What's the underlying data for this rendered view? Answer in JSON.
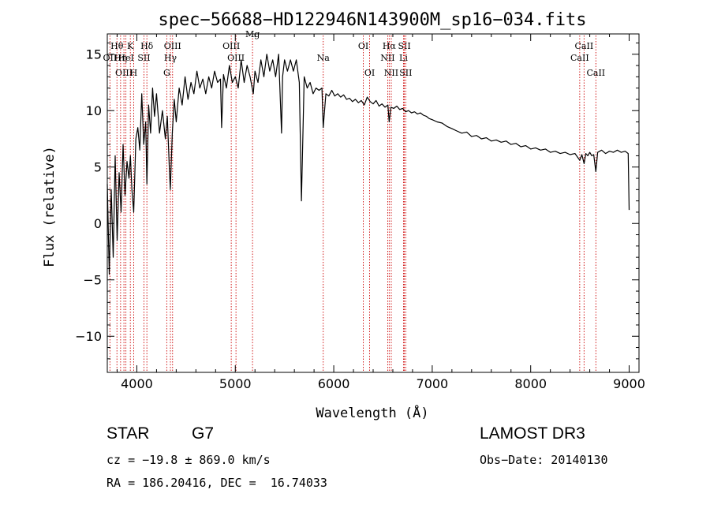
{
  "chart_data": {
    "type": "line",
    "title": "spec−56688−HD122946N143900M_sp16−034.fits",
    "xlabel": "Wavelength (Å)",
    "ylabel": "Flux (relative)",
    "xlim": [
      3700,
      9100
    ],
    "ylim": [
      -13.2,
      16.8
    ],
    "x_ticks": [
      4000,
      5000,
      6000,
      7000,
      8000,
      9000
    ],
    "x_tick_labels": [
      "4000",
      "5000",
      "6000",
      "7000",
      "8000",
      "9000"
    ],
    "y_ticks": [
      -10,
      -5,
      0,
      5,
      10,
      15
    ],
    "y_tick_labels": [
      "−10",
      "−5",
      "0",
      "5",
      "10",
      "15"
    ],
    "grid": false,
    "series": [
      {
        "name": "spectrum",
        "color": "#000000",
        "x": [
          3700,
          3720,
          3740,
          3760,
          3780,
          3800,
          3820,
          3840,
          3860,
          3880,
          3900,
          3920,
          3935,
          3950,
          3968,
          3990,
          4010,
          4030,
          4050,
          4070,
          4090,
          4102,
          4120,
          4140,
          4160,
          4180,
          4200,
          4230,
          4260,
          4290,
          4310,
          4330,
          4340,
          4360,
          4380,
          4400,
          4430,
          4460,
          4490,
          4520,
          4550,
          4580,
          4610,
          4640,
          4670,
          4700,
          4730,
          4760,
          4790,
          4820,
          4850,
          4861,
          4880,
          4910,
          4940,
          4970,
          5000,
          5030,
          5060,
          5090,
          5120,
          5150,
          5172,
          5183,
          5200,
          5230,
          5260,
          5290,
          5320,
          5350,
          5380,
          5410,
          5440,
          5470,
          5480,
          5500,
          5530,
          5560,
          5590,
          5620,
          5650,
          5672,
          5700,
          5730,
          5760,
          5790,
          5820,
          5850,
          5880,
          5893,
          5920,
          5950,
          5980,
          6010,
          6040,
          6070,
          6100,
          6130,
          6160,
          6190,
          6220,
          6250,
          6280,
          6310,
          6340,
          6370,
          6400,
          6430,
          6460,
          6490,
          6520,
          6550,
          6563,
          6580,
          6610,
          6640,
          6670,
          6700,
          6730,
          6760,
          6790,
          6820,
          6850,
          6880,
          6910,
          6940,
          6970,
          7000,
          7050,
          7100,
          7150,
          7200,
          7250,
          7300,
          7350,
          7400,
          7450,
          7500,
          7550,
          7600,
          7650,
          7700,
          7750,
          7800,
          7850,
          7900,
          7950,
          8000,
          8050,
          8100,
          8150,
          8200,
          8250,
          8300,
          8350,
          8400,
          8450,
          8498,
          8520,
          8542,
          8560,
          8580,
          8600,
          8620,
          8640,
          8662,
          8680,
          8720,
          8760,
          8800,
          8840,
          8880,
          8920,
          8960,
          8990,
          9000
        ],
        "y": [
          3.5,
          -4.5,
          3.0,
          -3.0,
          6.0,
          -1.5,
          4.5,
          1.0,
          7.0,
          2.5,
          5.5,
          4.0,
          6.0,
          3.0,
          1.0,
          7.5,
          8.5,
          6.5,
          11.5,
          7.0,
          9.0,
          3.5,
          10.5,
          8.0,
          12.0,
          9.5,
          11.5,
          8.0,
          10.0,
          7.5,
          9.5,
          5.0,
          3.0,
          8.0,
          11.0,
          9.0,
          12.0,
          10.5,
          13.0,
          11.0,
          12.5,
          11.5,
          13.5,
          12.0,
          12.8,
          11.5,
          13.0,
          12.0,
          13.5,
          12.5,
          12.8,
          8.5,
          13.2,
          12.0,
          14.0,
          12.5,
          13.0,
          12.0,
          14.5,
          12.5,
          14.0,
          13.0,
          12.0,
          11.5,
          13.5,
          12.5,
          14.5,
          13.0,
          15.0,
          13.5,
          14.5,
          13.0,
          15.0,
          8.0,
          13.0,
          14.5,
          13.5,
          14.5,
          13.5,
          14.5,
          12.5,
          2.0,
          13.0,
          12.0,
          12.5,
          11.5,
          12.0,
          11.8,
          12.0,
          8.5,
          11.5,
          11.3,
          11.8,
          11.3,
          11.5,
          11.2,
          11.4,
          11.0,
          11.1,
          10.8,
          11.0,
          10.7,
          10.9,
          10.5,
          11.2,
          10.8,
          10.6,
          10.9,
          10.4,
          10.6,
          10.3,
          10.5,
          9.0,
          10.3,
          10.2,
          10.4,
          10.1,
          10.2,
          9.9,
          10.0,
          9.8,
          9.9,
          9.7,
          9.8,
          9.6,
          9.5,
          9.3,
          9.2,
          9.0,
          8.9,
          8.6,
          8.4,
          8.2,
          8.0,
          8.1,
          7.7,
          7.8,
          7.5,
          7.6,
          7.3,
          7.4,
          7.2,
          7.3,
          7.0,
          7.1,
          6.8,
          6.9,
          6.6,
          6.7,
          6.5,
          6.6,
          6.3,
          6.4,
          6.2,
          6.3,
          6.1,
          6.2,
          5.6,
          6.1,
          5.3,
          6.2,
          6.0,
          6.3,
          6.0,
          6.1,
          4.6,
          6.3,
          6.5,
          6.2,
          6.4,
          6.3,
          6.5,
          6.3,
          6.4,
          6.2,
          1.2
        ]
      }
    ],
    "line_markers": [
      {
        "label": "Hθ",
        "x": 3798,
        "row": 1
      },
      {
        "label": "OII",
        "x": 3727,
        "row": 2
      },
      {
        "label": "OIII",
        "x": 3869,
        "row": 3
      },
      {
        "label": "Hη",
        "x": 3835,
        "row": 2
      },
      {
        "label": "HeI",
        "x": 3889,
        "row": 2
      },
      {
        "label": "K",
        "x": 3934,
        "row": 1
      },
      {
        "label": "H",
        "x": 3968,
        "row": 3
      },
      {
        "label": "SII",
        "x": 4072,
        "row": 2
      },
      {
        "label": "Hδ",
        "x": 4102,
        "row": 1
      },
      {
        "label": "OIII",
        "x": 4363,
        "row": 1
      },
      {
        "label": "Hγ",
        "x": 4341,
        "row": 2
      },
      {
        "label": "G",
        "x": 4304,
        "row": 3
      },
      {
        "label": "OIII",
        "x": 4959,
        "row": 1
      },
      {
        "label": "OIII",
        "x": 5007,
        "row": 2
      },
      {
        "label": "Mg",
        "x": 5175,
        "row": 0
      },
      {
        "label": "Na",
        "x": 5893,
        "row": 2
      },
      {
        "label": "OI",
        "x": 6300,
        "row": 1
      },
      {
        "label": "OI",
        "x": 6364,
        "row": 3
      },
      {
        "label": "Hα",
        "x": 6563,
        "row": 1
      },
      {
        "label": "NII",
        "x": 6548,
        "row": 2
      },
      {
        "label": "NII",
        "x": 6584,
        "row": 3
      },
      {
        "label": "SII",
        "x": 6717,
        "row": 1
      },
      {
        "label": "Li",
        "x": 6708,
        "row": 2
      },
      {
        "label": "SII",
        "x": 6731,
        "row": 3
      },
      {
        "label": "CaII",
        "x": 8542,
        "row": 1
      },
      {
        "label": "CaII",
        "x": 8498,
        "row": 2
      },
      {
        "label": "CaII",
        "x": 8662,
        "row": 3
      }
    ]
  },
  "info": {
    "class_label": "STAR",
    "subclass": "G7",
    "survey": "LAMOST DR3",
    "cz": "cz = −19.8 ± 869.0 km/s",
    "obs_date": "Obs−Date: 20140130",
    "coords": "RA = 186.20416, DEC =  16.74033"
  },
  "colors": {
    "spectrum": "#000000",
    "marker_line": "#cc0000",
    "axes": "#000000"
  }
}
